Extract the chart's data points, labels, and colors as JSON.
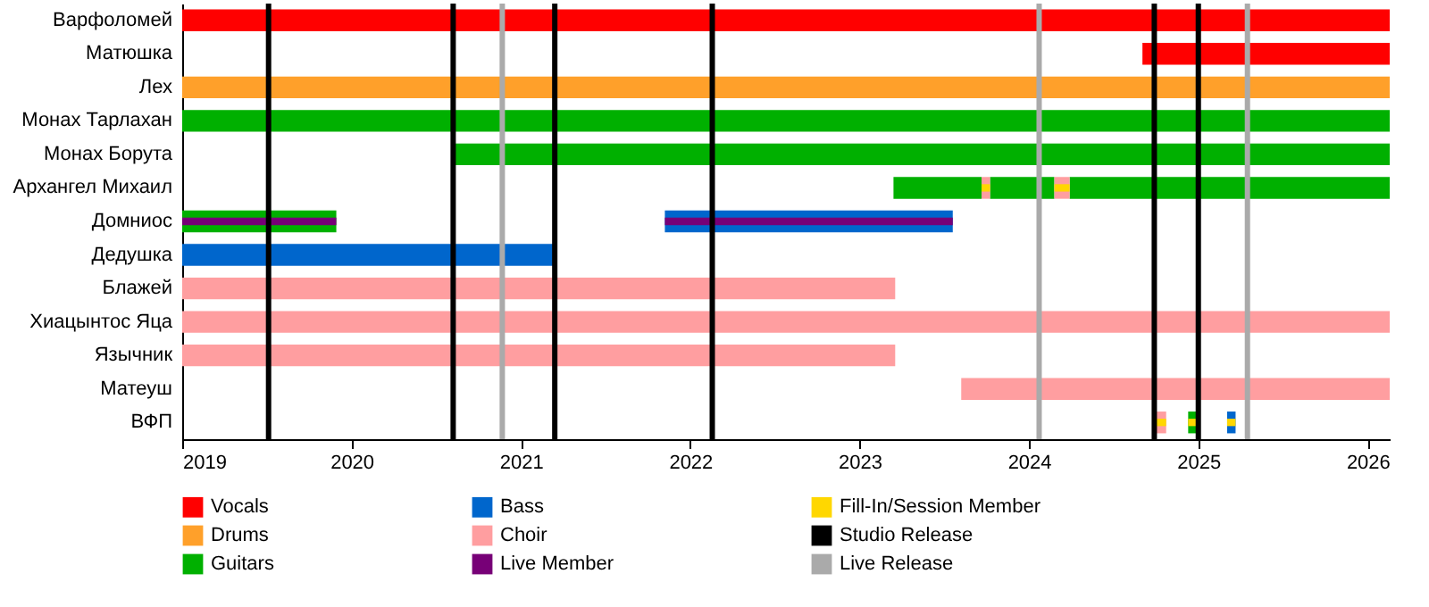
{
  "chart_data": {
    "type": "bar",
    "orientation": "horizontal",
    "categories": [
      "Варфоломей",
      "Матюшка",
      "Лех",
      "Монах Тарлахан",
      "Монах Борута",
      "Архангел Михаил",
      "Домниос",
      "Дедушка",
      "Блажей",
      "Хиацынтос Яца",
      "Язычник",
      "Матеуш",
      "ВФП"
    ],
    "xlim": [
      2019,
      2026.13
    ],
    "xticks": [
      2019,
      2020,
      2021,
      2022,
      2023,
      2024,
      2025,
      2026
    ],
    "grid": false,
    "legend": "bottom",
    "series": [
      {
        "name": "Vocals",
        "color": "#ff0000",
        "base": [
          2019,
          2024.67,
          null,
          null,
          null,
          null,
          null,
          null,
          null,
          null,
          null,
          null,
          null
        ],
        "values": [
          7.13,
          1.46,
          null,
          null,
          null,
          null,
          null,
          null,
          null,
          null,
          null,
          null,
          null
        ]
      },
      {
        "name": "Drums",
        "color": "#ffa02a",
        "base": [
          null,
          null,
          2019,
          null,
          null,
          null,
          null,
          null,
          null,
          null,
          null,
          null,
          null
        ],
        "values": [
          null,
          null,
          7.13,
          null,
          null,
          null,
          null,
          null,
          null,
          null,
          null,
          null,
          null
        ]
      },
      {
        "name": "Guitars",
        "color": "#00b000",
        "base": [
          null,
          null,
          null,
          2019,
          2020.6,
          2023.2,
          2019,
          null,
          null,
          null,
          null,
          null,
          2024.94
        ],
        "values": [
          null,
          null,
          null,
          7.13,
          5.53,
          0.52,
          0.91,
          null,
          null,
          null,
          null,
          null,
          0.06
        ]
      },
      {
        "color": "#00b000",
        "base": [
          null,
          null,
          null,
          null,
          null,
          2023.77,
          null,
          null,
          null,
          null,
          null,
          null,
          null
        ],
        "values": [
          null,
          null,
          null,
          null,
          null,
          0.38,
          null,
          null,
          null,
          null,
          null,
          null,
          null
        ]
      },
      {
        "color": "#00b000",
        "base": [
          null,
          null,
          null,
          null,
          null,
          2024.24,
          null,
          null,
          null,
          null,
          null,
          null,
          null
        ],
        "values": [
          null,
          null,
          null,
          null,
          null,
          1.89,
          null,
          null,
          null,
          null,
          null,
          null,
          null
        ]
      },
      {
        "name": "Bass",
        "color": "#0066cc",
        "base": [
          null,
          null,
          null,
          null,
          null,
          null,
          2021.85,
          2019,
          null,
          null,
          null,
          null,
          2025.17
        ],
        "values": [
          null,
          null,
          null,
          null,
          null,
          null,
          1.7,
          2.2,
          null,
          null,
          null,
          null,
          0.05
        ]
      },
      {
        "name": "Choir",
        "color": "#ff9ea0",
        "base": [
          null,
          null,
          null,
          null,
          null,
          2023.72,
          null,
          null,
          2019,
          2019,
          2019,
          2023.6,
          2024.74
        ],
        "values": [
          null,
          null,
          null,
          null,
          null,
          0.05,
          null,
          null,
          4.21,
          7.13,
          4.21,
          2.53,
          0.07
        ]
      },
      {
        "color": "#ff9ea0",
        "base": [
          null,
          null,
          null,
          null,
          null,
          2024.15,
          null,
          null,
          null,
          null,
          null,
          null,
          null
        ],
        "values": [
          null,
          null,
          null,
          null,
          null,
          0.09,
          null,
          null,
          null,
          null,
          null,
          null,
          null
        ]
      },
      {
        "name": "Live Member",
        "color": "#770077",
        "base": [
          null,
          null,
          null,
          null,
          null,
          null,
          2019,
          null,
          null,
          null,
          null,
          null,
          null
        ],
        "values": [
          null,
          null,
          null,
          null,
          null,
          null,
          0.91,
          null,
          null,
          null,
          null,
          null,
          null
        ]
      },
      {
        "color": "#770077",
        "base": [
          null,
          null,
          null,
          null,
          null,
          null,
          2021.85,
          null,
          null,
          null,
          null,
          null,
          null
        ],
        "values": [
          null,
          null,
          null,
          null,
          null,
          null,
          1.7,
          null,
          null,
          null,
          null,
          null,
          null
        ]
      },
      {
        "name": "Fill-In/Session Member",
        "color": "#ffd700",
        "base": [
          null,
          null,
          null,
          null,
          null,
          2023.72,
          null,
          null,
          null,
          null,
          null,
          null,
          2024.74
        ],
        "values": [
          null,
          null,
          null,
          null,
          null,
          0.05,
          null,
          null,
          null,
          null,
          null,
          null,
          0.07
        ]
      },
      {
        "color": "#ffd700",
        "base": [
          null,
          null,
          null,
          null,
          null,
          2024.15,
          null,
          null,
          null,
          null,
          null,
          null,
          2024.94
        ],
        "values": [
          null,
          null,
          null,
          null,
          null,
          0.09,
          null,
          null,
          null,
          null,
          null,
          null,
          0.06
        ]
      },
      {
        "color": "#ffd700",
        "base": [
          null,
          null,
          null,
          null,
          null,
          null,
          null,
          null,
          null,
          null,
          null,
          null,
          2025.17
        ],
        "values": [
          null,
          null,
          null,
          null,
          null,
          null,
          null,
          null,
          null,
          null,
          null,
          null,
          0.05
        ]
      }
    ],
    "ref_lines": [
      {
        "axis": "x",
        "value": 2019.51,
        "label": "Studio Release",
        "color": "#000000"
      },
      {
        "axis": "x",
        "value": 2020.6,
        "color": "#000000"
      },
      {
        "axis": "x",
        "value": 2021.2,
        "color": "#000000"
      },
      {
        "axis": "x",
        "value": 2022.13,
        "color": "#000000"
      },
      {
        "axis": "x",
        "value": 2024.74,
        "color": "#000000"
      },
      {
        "axis": "x",
        "value": 2025.0,
        "color": "#000000"
      },
      {
        "axis": "x",
        "value": 2020.89,
        "label": "Live Release",
        "color": "#aaaaaa"
      },
      {
        "axis": "x",
        "value": 2024.06,
        "color": "#aaaaaa"
      },
      {
        "axis": "x",
        "value": 2025.29,
        "color": "#aaaaaa"
      }
    ]
  }
}
